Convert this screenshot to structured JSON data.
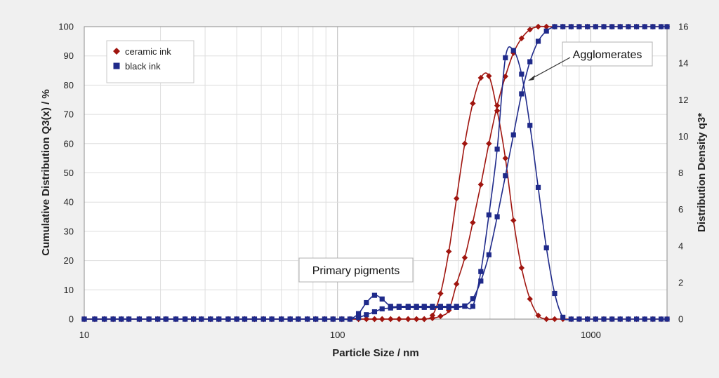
{
  "chart_data": {
    "type": "scatter",
    "title": "",
    "xlabel": "Particle Size / nm",
    "ylabel_left": "Cumulative Distribution Q3(x) / %",
    "ylabel_right": "Distribution Density q3*",
    "x_scale": "log",
    "xlim": [
      10,
      2000
    ],
    "ylim_left": [
      0,
      100
    ],
    "ylim_right": [
      0,
      16
    ],
    "x_ticks": [
      10,
      100,
      1000
    ],
    "y_ticks_left": [
      0,
      10,
      20,
      30,
      40,
      50,
      60,
      70,
      80,
      90,
      100
    ],
    "y_ticks_right": [
      0,
      2,
      4,
      6,
      8,
      10,
      12,
      14,
      16
    ],
    "grid": true,
    "legend_position": "top-left",
    "legend": [
      {
        "name": "ceramic ink",
        "marker": "diamond",
        "color": "#a0150f"
      },
      {
        "name": "black ink",
        "marker": "square",
        "color": "#1f2a8a"
      }
    ],
    "annotations": [
      {
        "text": "Primary pigments",
        "points_to": "black ink density peak near 120 nm"
      },
      {
        "text": "Agglomerates",
        "points_to": "density peaks near 400–500 nm"
      }
    ],
    "series": [
      {
        "name": "ceramic ink cumulative",
        "group": "ceramic ink",
        "axis": "left",
        "color": "#a0150f",
        "marker": "diamond",
        "x": [
          10,
          11,
          12,
          13,
          14,
          15,
          16.5,
          18,
          19.5,
          21,
          23,
          25,
          27,
          29,
          31.5,
          34,
          37,
          40,
          43,
          47,
          51,
          55,
          60,
          65,
          70,
          76,
          82,
          89,
          96,
          104,
          112,
          121,
          130,
          140,
          150,
          162,
          175,
          190,
          205,
          220,
          237,
          255,
          275,
          295,
          318,
          342,
          368,
          396,
          427,
          460,
          495,
          533,
          575,
          620,
          668,
          720,
          776,
          836,
          900,
          970,
          1045,
          1126,
          1213,
          1306,
          1407,
          1516,
          1633,
          1759,
          1895,
          2000
        ],
        "y": [
          0,
          0,
          0,
          0,
          0,
          0,
          0,
          0,
          0,
          0,
          0,
          0,
          0,
          0,
          0,
          0,
          0,
          0,
          0,
          0,
          0,
          0,
          0,
          0,
          0,
          0,
          0,
          0,
          0,
          0,
          0,
          0,
          0,
          0,
          0,
          0,
          0,
          0,
          0,
          0,
          0.3,
          1,
          3,
          12,
          21,
          33,
          46,
          60,
          73,
          83,
          91,
          96,
          99,
          100,
          100,
          100,
          100,
          100,
          100,
          100,
          100,
          100,
          100,
          100,
          100,
          100,
          100,
          100,
          100,
          100
        ]
      },
      {
        "name": "ceramic ink density",
        "group": "ceramic ink",
        "axis": "right",
        "color": "#a0150f",
        "marker": "diamond",
        "x": [
          10,
          11,
          12,
          13,
          14,
          15,
          16.5,
          18,
          19.5,
          21,
          23,
          25,
          27,
          29,
          31.5,
          34,
          37,
          40,
          43,
          47,
          51,
          55,
          60,
          65,
          70,
          76,
          82,
          89,
          96,
          104,
          112,
          121,
          130,
          140,
          150,
          162,
          175,
          190,
          205,
          220,
          237,
          255,
          275,
          295,
          318,
          342,
          368,
          396,
          427,
          460,
          495,
          533,
          575,
          620,
          668,
          720,
          776,
          836,
          900,
          970,
          1045,
          1126,
          1213,
          1306,
          1407,
          1516,
          1633,
          1759,
          1895,
          2000
        ],
        "y": [
          0,
          0,
          0,
          0,
          0,
          0,
          0,
          0,
          0,
          0,
          0,
          0,
          0,
          0,
          0,
          0,
          0,
          0,
          0,
          0,
          0,
          0,
          0,
          0,
          0,
          0,
          0,
          0,
          0,
          0,
          0,
          0,
          0,
          0,
          0,
          0,
          0,
          0,
          0,
          0,
          0.2,
          1.4,
          3.7,
          6.6,
          9.6,
          11.8,
          13.2,
          13.3,
          11.4,
          8.8,
          5.4,
          2.8,
          1.1,
          0.2,
          0,
          0,
          0,
          0,
          0,
          0,
          0,
          0,
          0,
          0,
          0,
          0,
          0,
          0,
          0,
          0
        ]
      },
      {
        "name": "black ink cumulative",
        "group": "black ink",
        "axis": "left",
        "color": "#1f2a8a",
        "marker": "square",
        "x": [
          10,
          11,
          12,
          13,
          14,
          15,
          16.5,
          18,
          19.5,
          21,
          23,
          25,
          27,
          29,
          31.5,
          34,
          37,
          40,
          43,
          47,
          51,
          55,
          60,
          65,
          70,
          76,
          82,
          89,
          96,
          104,
          112,
          121,
          130,
          140,
          150,
          162,
          175,
          190,
          205,
          220,
          237,
          255,
          275,
          295,
          318,
          342,
          368,
          396,
          427,
          460,
          495,
          533,
          575,
          620,
          668,
          720,
          776,
          836,
          900,
          970,
          1045,
          1126,
          1213,
          1306,
          1407,
          1516,
          1633,
          1759,
          1895,
          2000
        ],
        "y": [
          0,
          0,
          0,
          0,
          0,
          0,
          0,
          0,
          0,
          0,
          0,
          0,
          0,
          0,
          0,
          0,
          0,
          0,
          0,
          0,
          0,
          0,
          0,
          0,
          0,
          0,
          0,
          0,
          0,
          0,
          0,
          0.5,
          1.5,
          2.5,
          3.5,
          3.8,
          4,
          4,
          4,
          4,
          4,
          4,
          4,
          4,
          4.5,
          7,
          13,
          22,
          35,
          49,
          63,
          77,
          88,
          95,
          98.5,
          100,
          100,
          100,
          100,
          100,
          100,
          100,
          100,
          100,
          100,
          100,
          100,
          100,
          100,
          100
        ]
      },
      {
        "name": "black ink density",
        "group": "black ink",
        "axis": "right",
        "color": "#1f2a8a",
        "marker": "square",
        "x": [
          10,
          11,
          12,
          13,
          14,
          15,
          16.5,
          18,
          19.5,
          21,
          23,
          25,
          27,
          29,
          31.5,
          34,
          37,
          40,
          43,
          47,
          51,
          55,
          60,
          65,
          70,
          76,
          82,
          89,
          96,
          104,
          112,
          121,
          130,
          140,
          150,
          162,
          175,
          190,
          205,
          220,
          237,
          255,
          275,
          295,
          318,
          342,
          368,
          396,
          427,
          460,
          495,
          533,
          575,
          620,
          668,
          720,
          776,
          836,
          900,
          970,
          1045,
          1126,
          1213,
          1306,
          1407,
          1516,
          1633,
          1759,
          1895,
          2000
        ],
        "y": [
          0,
          0,
          0,
          0,
          0,
          0,
          0,
          0,
          0,
          0,
          0,
          0,
          0,
          0,
          0,
          0,
          0,
          0,
          0,
          0,
          0,
          0,
          0,
          0,
          0,
          0,
          0,
          0,
          0,
          0,
          0,
          0.3,
          0.9,
          1.3,
          1.1,
          0.7,
          0.7,
          0.7,
          0.7,
          0.7,
          0.7,
          0.7,
          0.7,
          0.7,
          0.7,
          0.7,
          2.6,
          5.7,
          9.3,
          14.3,
          14.7,
          13.4,
          10.6,
          7.2,
          3.9,
          1.4,
          0.1,
          0,
          0,
          0,
          0,
          0,
          0,
          0,
          0,
          0,
          0,
          0,
          0,
          0
        ]
      }
    ]
  }
}
